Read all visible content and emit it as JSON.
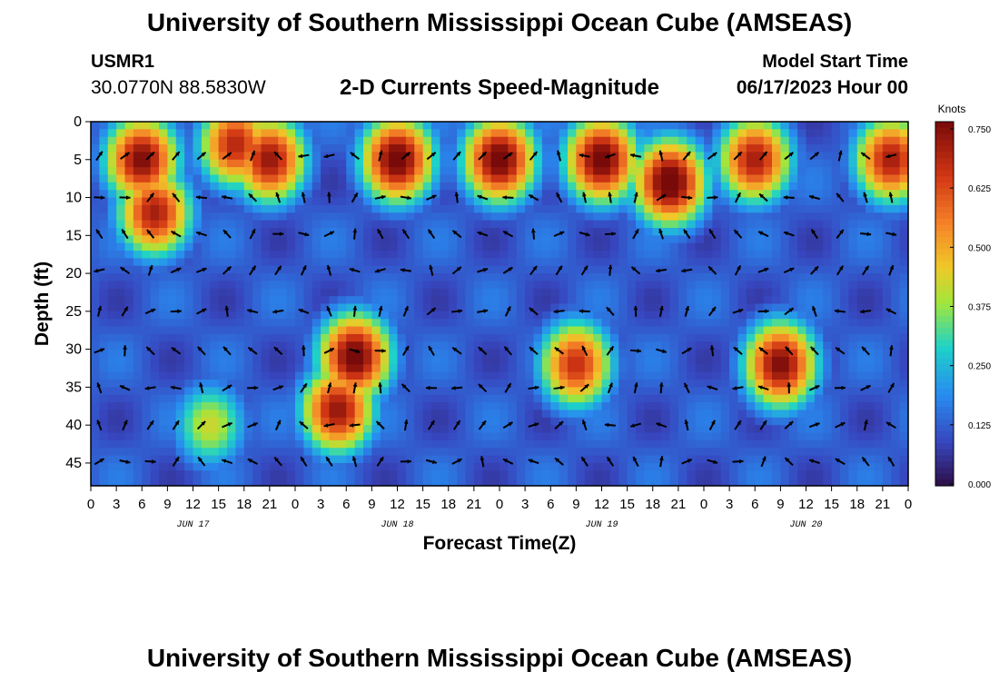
{
  "header": {
    "title": "University of Southern Mississippi Ocean Cube (AMSEAS)",
    "station": "USMR1",
    "coords": "30.0770N  88.5830W",
    "subtitle": "2-D Currents Speed-Magnitude",
    "model_start_label": "Model Start Time",
    "model_start_value": "06/17/2023 Hour 00"
  },
  "footer": {
    "title": "University of Southern Mississippi Ocean Cube (AMSEAS)"
  },
  "chart_data": {
    "type": "heatmap",
    "title": "2-D Currents Speed-Magnitude",
    "xlabel": "Forecast Time(Z)",
    "ylabel": "Depth (ft)",
    "x_ticks": [
      "0",
      "3",
      "6",
      "9",
      "12",
      "15",
      "18",
      "21",
      "0",
      "3",
      "6",
      "9",
      "12",
      "15",
      "18",
      "21",
      "0",
      "3",
      "6",
      "9",
      "12",
      "15",
      "18",
      "21",
      "0",
      "3",
      "6",
      "9",
      "12",
      "15",
      "18",
      "21",
      "0"
    ],
    "day_labels": [
      "JUN 17",
      "JUN 18",
      "JUN 19",
      "JUN 20"
    ],
    "y_ticks": [
      "0",
      "5",
      "10",
      "15",
      "20",
      "25",
      "30",
      "35",
      "40",
      "45"
    ],
    "xlim_hours": [
      0,
      96
    ],
    "ylim_ft": [
      0,
      48
    ],
    "colorbar": {
      "label": "Knots",
      "ticks": [
        "0.750",
        "0.625",
        "0.500",
        "0.375",
        "0.250",
        "0.125",
        "0.000"
      ],
      "range": [
        0,
        0.75
      ]
    },
    "speed_blobs": [
      {
        "hour": 6,
        "depth": 5,
        "speed": 0.75
      },
      {
        "hour": 7.5,
        "depth": 12,
        "speed": 0.7
      },
      {
        "hour": 21,
        "depth": 5,
        "speed": 0.72
      },
      {
        "hour": 17,
        "depth": 3,
        "speed": 0.68
      },
      {
        "hour": 36,
        "depth": 5,
        "speed": 0.78
      },
      {
        "hour": 48,
        "depth": 5,
        "speed": 0.78
      },
      {
        "hour": 60,
        "depth": 5,
        "speed": 0.78
      },
      {
        "hour": 68,
        "depth": 8,
        "speed": 0.8
      },
      {
        "hour": 78,
        "depth": 5,
        "speed": 0.7
      },
      {
        "hour": 94,
        "depth": 5,
        "speed": 0.7
      },
      {
        "hour": 31,
        "depth": 31,
        "speed": 0.78
      },
      {
        "hour": 29,
        "depth": 38,
        "speed": 0.72
      },
      {
        "hour": 57,
        "depth": 32,
        "speed": 0.66
      },
      {
        "hour": 81,
        "depth": 32,
        "speed": 0.75
      },
      {
        "hour": 14,
        "depth": 40,
        "speed": 0.42
      }
    ],
    "arrow_rows_ft": [
      4.5,
      10,
      14.8,
      19.6,
      25,
      30.2,
      35.1,
      40,
      44.8
    ],
    "arrow_cols_hours": [
      0,
      3,
      6,
      9,
      12,
      15,
      18,
      21,
      24,
      27,
      30,
      33,
      36,
      39,
      42,
      45,
      48,
      51,
      54,
      57,
      60,
      63,
      66,
      69,
      72,
      75,
      78,
      81,
      84,
      87,
      90,
      93
    ]
  }
}
